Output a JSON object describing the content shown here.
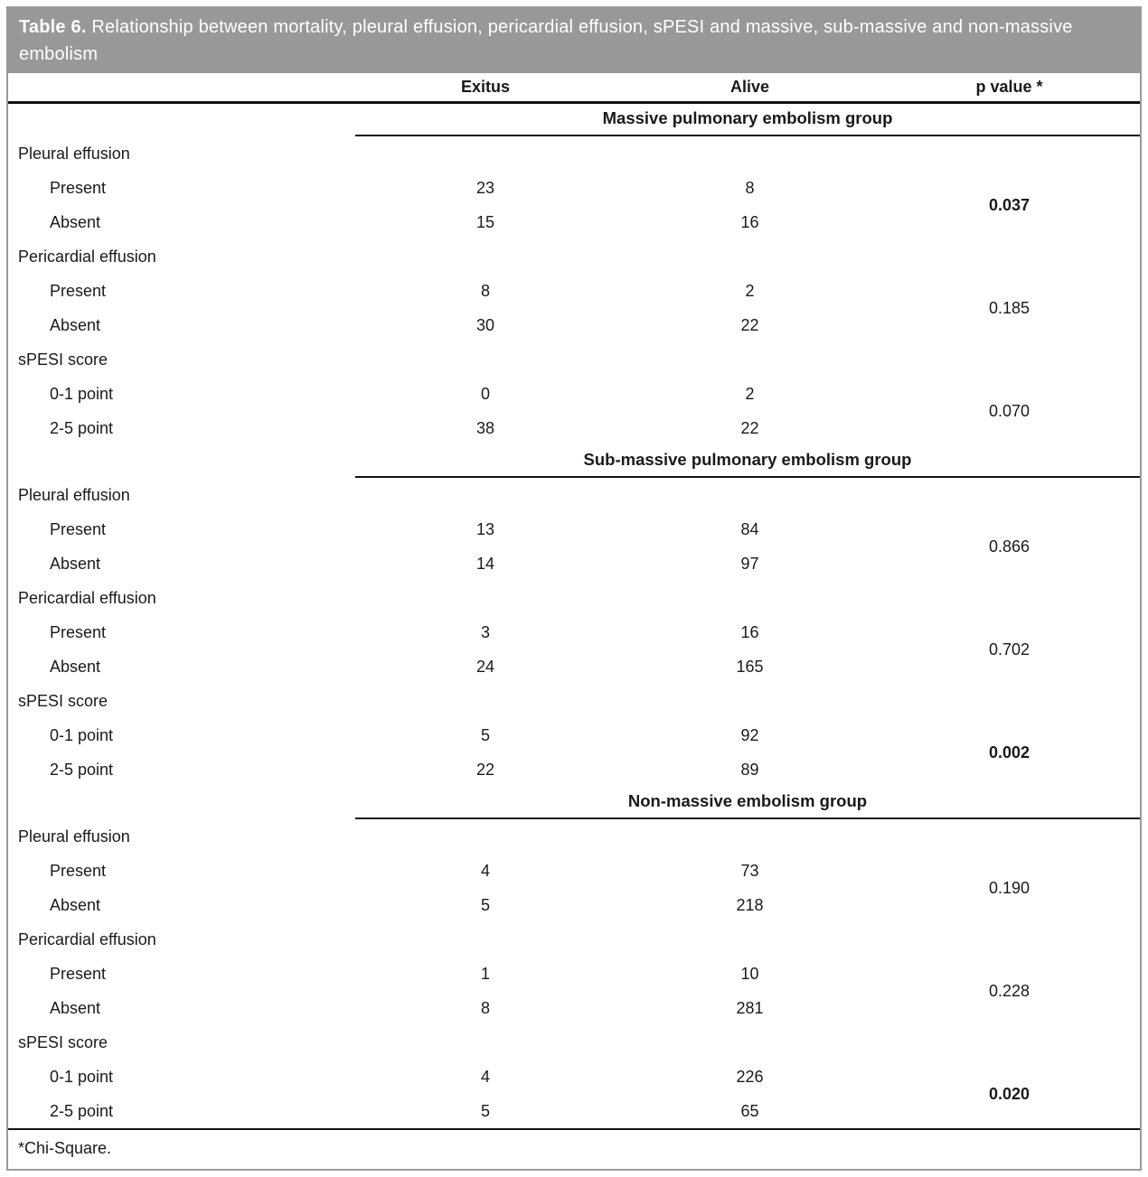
{
  "title": {
    "label": "Table 6.",
    "text": " Relationship between mortality, pleural effusion, pericardial effusion, sPESI and massive, sub-massive and non-massive embolism"
  },
  "columns": {
    "exitus": "Exitus",
    "alive": "Alive",
    "p_value": "p value *"
  },
  "groups": [
    {
      "name": "Massive pulmonary embolism group",
      "sections": [
        {
          "label": "Pleural effusion",
          "rows": [
            {
              "label": "Present",
              "exitus": "23",
              "alive": "8"
            },
            {
              "label": "Absent",
              "exitus": "15",
              "alive": "16"
            }
          ],
          "p": "0.037",
          "p_bold": true
        },
        {
          "label": "Pericardial effusion",
          "rows": [
            {
              "label": "Present",
              "exitus": "8",
              "alive": "2"
            },
            {
              "label": "Absent",
              "exitus": "30",
              "alive": "22"
            }
          ],
          "p": "0.185",
          "p_bold": false
        },
        {
          "label": "sPESI score",
          "rows": [
            {
              "label": "0-1 point",
              "exitus": "0",
              "alive": "2"
            },
            {
              "label": "2-5 point",
              "exitus": "38",
              "alive": "22"
            }
          ],
          "p": "0.070",
          "p_bold": false
        }
      ]
    },
    {
      "name": "Sub-massive pulmonary embolism group",
      "sections": [
        {
          "label": "Pleural effusion",
          "rows": [
            {
              "label": "Present",
              "exitus": "13",
              "alive": "84"
            },
            {
              "label": "Absent",
              "exitus": "14",
              "alive": "97"
            }
          ],
          "p": "0.866",
          "p_bold": false
        },
        {
          "label": "Pericardial effusion",
          "rows": [
            {
              "label": "Present",
              "exitus": "3",
              "alive": "16"
            },
            {
              "label": "Absent",
              "exitus": "24",
              "alive": "165"
            }
          ],
          "p": "0.702",
          "p_bold": false
        },
        {
          "label": "sPESI score",
          "rows": [
            {
              "label": "0-1 point",
              "exitus": "5",
              "alive": "92"
            },
            {
              "label": "2-5 point",
              "exitus": "22",
              "alive": "89"
            }
          ],
          "p": "0.002",
          "p_bold": true
        }
      ]
    },
    {
      "name": "Non-massive embolism group",
      "sections": [
        {
          "label": "Pleural effusion",
          "rows": [
            {
              "label": "Present",
              "exitus": "4",
              "alive": "73"
            },
            {
              "label": "Absent",
              "exitus": "5",
              "alive": "218"
            }
          ],
          "p": "0.190",
          "p_bold": false
        },
        {
          "label": "Pericardial effusion",
          "rows": [
            {
              "label": "Present",
              "exitus": "1",
              "alive": "10"
            },
            {
              "label": "Absent",
              "exitus": "8",
              "alive": "281"
            }
          ],
          "p": "0.228",
          "p_bold": false
        },
        {
          "label": "sPESI score",
          "rows": [
            {
              "label": "0-1 point",
              "exitus": "4",
              "alive": "226"
            },
            {
              "label": "2-5 point",
              "exitus": "5",
              "alive": "65"
            }
          ],
          "p": "0.020",
          "p_bold": true
        }
      ]
    }
  ],
  "footnote": "*Chi-Square.",
  "colors": {
    "band_background": "#989898",
    "band_text": "#ffffff",
    "rule": "#121212",
    "outer_border": "#9a9a9a",
    "text": "#1a1a1a"
  }
}
